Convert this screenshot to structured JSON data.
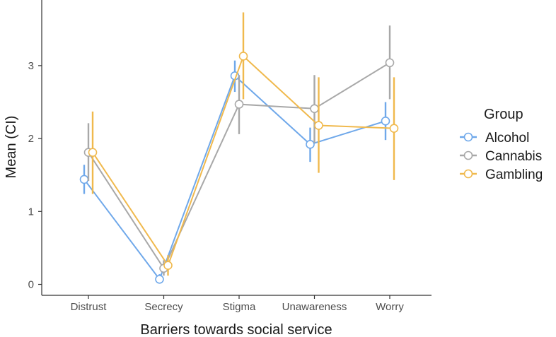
{
  "chart_data": {
    "type": "line",
    "xlabel": "Barriers towards social service",
    "ylabel": "Mean (CI)",
    "categories": [
      "Distrust",
      "Secrecy",
      "Stigma",
      "Unawareness",
      "Worry"
    ],
    "yticks": [
      0,
      1,
      2,
      3
    ],
    "ylim": [
      -0.15,
      3.9
    ],
    "grid": false,
    "legend": {
      "title": "Group",
      "position": "right"
    },
    "error_bars": "confidence interval",
    "series": [
      {
        "name": "Alcohol",
        "color": "#6fa8ea",
        "values": [
          1.44,
          0.07,
          2.86,
          1.92,
          2.24
        ],
        "lower": [
          1.24,
          0.02,
          2.64,
          1.68,
          1.98
        ],
        "upper": [
          1.64,
          0.14,
          3.07,
          2.15,
          2.5
        ]
      },
      {
        "name": "Cannabis",
        "color": "#a8a8a8",
        "values": [
          1.81,
          0.22,
          2.47,
          2.41,
          3.04
        ],
        "lower": [
          1.42,
          0.12,
          2.06,
          1.94,
          2.54
        ],
        "upper": [
          2.21,
          0.33,
          2.87,
          2.87,
          3.55
        ]
      },
      {
        "name": "Gambling",
        "color": "#f0b94d",
        "values": [
          1.81,
          0.26,
          3.13,
          2.18,
          2.14
        ],
        "lower": [
          1.24,
          0.12,
          2.54,
          1.53,
          1.43
        ],
        "upper": [
          2.37,
          0.4,
          3.73,
          2.84,
          2.84
        ]
      }
    ]
  }
}
